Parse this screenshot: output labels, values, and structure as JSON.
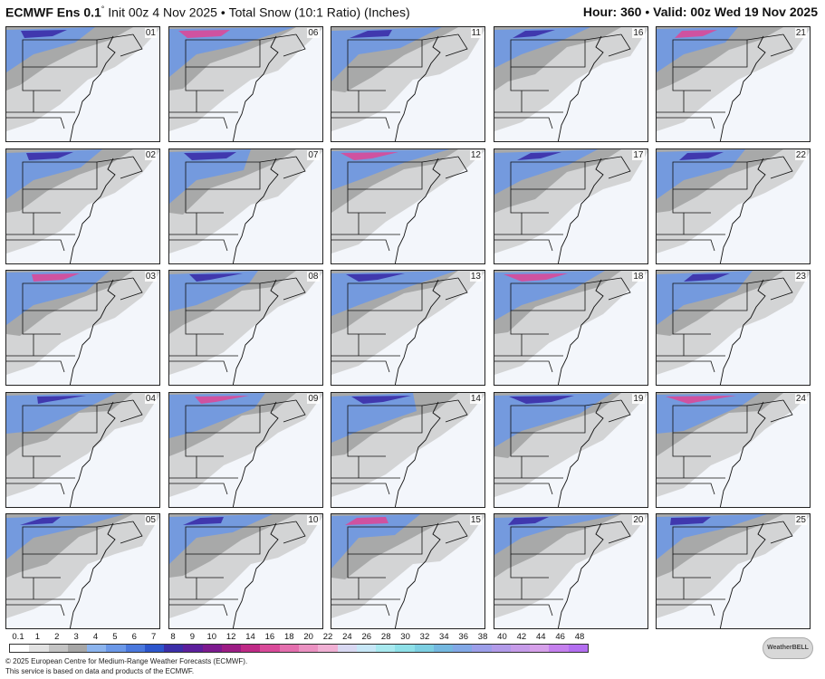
{
  "header": {
    "model": "ECMWF Ens 0.1",
    "degree": "°",
    "init": "Init 00z 4 Nov 2025",
    "bullet": "•",
    "product": "Total Snow (10:1 Ratio) (Inches)",
    "hour_label": "Hour:",
    "hour": "360",
    "valid_label": "Valid:",
    "valid": "00z Wed 19 Nov 2025"
  },
  "members": [
    "01",
    "06",
    "11",
    "16",
    "21",
    "02",
    "07",
    "12",
    "17",
    "22",
    "03",
    "08",
    "13",
    "18",
    "23",
    "04",
    "09",
    "14",
    "19",
    "24",
    "05",
    "10",
    "15",
    "20",
    "25"
  ],
  "legend": {
    "ticks": [
      "0.1",
      "1",
      "2",
      "3",
      "4",
      "5",
      "6",
      "7",
      "8",
      "9",
      "10",
      "12",
      "14",
      "16",
      "18",
      "20",
      "22",
      "24",
      "26",
      "28",
      "30",
      "32",
      "34",
      "36",
      "38",
      "40",
      "42",
      "44",
      "46",
      "48"
    ],
    "colors": [
      "#ffffff",
      "#e2e2e2",
      "#c4c4c4",
      "#a6a6a6",
      "#8cb4ee",
      "#6b98e8",
      "#4a78dd",
      "#2c55cc",
      "#3b2ea8",
      "#5c1f9c",
      "#7d1a8f",
      "#9c1c84",
      "#bf2a86",
      "#d94a99",
      "#e46fae",
      "#eb92c2",
      "#f0b0d4",
      "#d8d8f2",
      "#c7e7f7",
      "#a8e9ef",
      "#8ee0e8",
      "#7ccfe2",
      "#74b8e0",
      "#82a8e6",
      "#9c9ee9",
      "#b29ae9",
      "#c69be9",
      "#d6a0ea",
      "#c580ee",
      "#b36ef0"
    ]
  },
  "footer": {
    "copyright": "© 2025 European Centre for Medium-Range Weather Forecasts (ECMWF).",
    "service": "This service is based on data and products of the ECMWF."
  },
  "logo_text": "WeatherBELL"
}
